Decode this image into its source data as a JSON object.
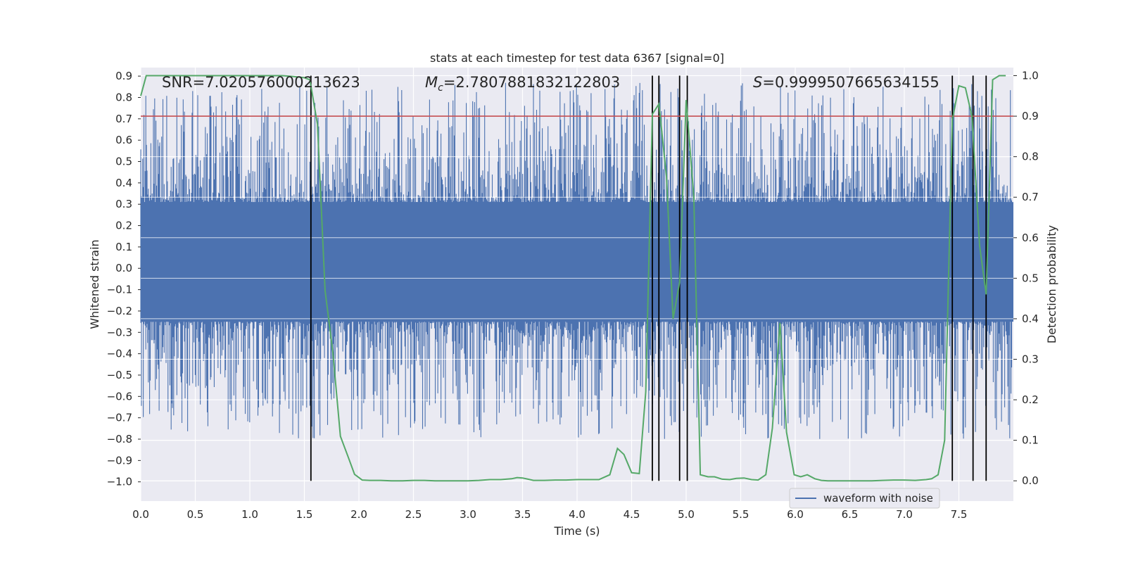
{
  "chart_data": {
    "type": "line",
    "title": "stats at each timestep for test data 6367 [signal=0]",
    "xlabel": "Time (s)",
    "ylabel_left": "Whitened strain",
    "ylabel_right": "Detection probability",
    "xlim": [
      0.0,
      8.0
    ],
    "ylim_left": [
      -1.09,
      0.94
    ],
    "ylim_right": [
      -0.05,
      1.02
    ],
    "x_ticks": [
      "0.0",
      "0.5",
      "1.0",
      "1.5",
      "2.0",
      "2.5",
      "3.0",
      "3.5",
      "4.0",
      "4.5",
      "5.0",
      "5.5",
      "6.0",
      "6.5",
      "7.0",
      "7.5"
    ],
    "y_ticks_left": [
      "0.9",
      "0.8",
      "0.7",
      "0.6",
      "0.5",
      "0.4",
      "0.3",
      "0.2",
      "0.1",
      "0.0",
      "−0.1",
      "−0.2",
      "−0.3",
      "−0.4",
      "−0.5",
      "−0.6",
      "−0.7",
      "−0.8",
      "−0.9",
      "−1.0"
    ],
    "y_ticks_right": [
      "1.0",
      "0.9",
      "0.8",
      "0.7",
      "0.6",
      "0.5",
      "0.4",
      "0.3",
      "0.2",
      "0.1",
      "0.0"
    ],
    "annotations": {
      "snr": "SNR=7.020576000213623",
      "mc_symbol": "M",
      "mc_sub": "c",
      "mc_value": "=2.7807881832122803",
      "s_symbol": "S",
      "s_value": "=0.9999507665634155"
    },
    "legend": {
      "label": "waveform with noise",
      "position": "bottom-right"
    },
    "threshold_line": {
      "prob": 0.9,
      "color": "#c44e52"
    },
    "vertical_lines_time": [
      1.56,
      4.69,
      4.75,
      4.94,
      5.01,
      7.44,
      7.63,
      7.75
    ],
    "series": [
      {
        "name": "waveform with noise",
        "color": "#4c72b0",
        "axis": "left",
        "style": "noise band",
        "core_range": [
          -0.25,
          0.31
        ],
        "envelope": [
          -0.8,
          0.87
        ]
      },
      {
        "name": "detection probability",
        "color": "#55a868",
        "axis": "right",
        "x": [
          0.0,
          0.05,
          0.1,
          0.2,
          0.3,
          0.4,
          0.5,
          0.6,
          0.7,
          0.8,
          0.9,
          1.0,
          1.1,
          1.2,
          1.3,
          1.4,
          1.5,
          1.55,
          1.62,
          1.69,
          1.76,
          1.83,
          1.9,
          1.96,
          2.03,
          2.1,
          2.2,
          2.3,
          2.4,
          2.5,
          2.6,
          2.7,
          2.8,
          2.9,
          3.0,
          3.1,
          3.2,
          3.3,
          3.4,
          3.45,
          3.5,
          3.55,
          3.6,
          3.7,
          3.8,
          3.9,
          4.0,
          4.1,
          4.2,
          4.3,
          4.37,
          4.43,
          4.5,
          4.57,
          4.63,
          4.69,
          4.75,
          4.82,
          4.88,
          4.94,
          5.0,
          5.07,
          5.13,
          5.2,
          5.26,
          5.33,
          5.4,
          5.46,
          5.53,
          5.6,
          5.66,
          5.73,
          5.79,
          5.86,
          5.92,
          5.99,
          6.05,
          6.11,
          6.18,
          6.24,
          6.3,
          6.4,
          6.5,
          6.6,
          6.7,
          6.8,
          6.9,
          7.0,
          7.1,
          7.2,
          7.25,
          7.31,
          7.37,
          7.44,
          7.5,
          7.56,
          7.62,
          7.69,
          7.75,
          7.81,
          7.87,
          7.93
        ],
        "y": [
          0.95,
          1.0,
          1.0,
          1.0,
          1.0,
          1.0,
          1.0,
          1.0,
          1.0,
          1.0,
          1.0,
          1.0,
          1.0,
          1.0,
          1.0,
          0.998,
          0.995,
          0.99,
          0.88,
          0.47,
          0.32,
          0.11,
          0.06,
          0.016,
          0.002,
          0.001,
          0.001,
          0.0,
          0.0,
          0.001,
          0.001,
          0.0,
          0.0,
          0.0,
          0.0,
          0.001,
          0.003,
          0.003,
          0.005,
          0.008,
          0.007,
          0.004,
          0.001,
          0.001,
          0.002,
          0.002,
          0.003,
          0.003,
          0.003,
          0.015,
          0.08,
          0.065,
          0.02,
          0.018,
          0.22,
          0.905,
          0.93,
          0.75,
          0.4,
          0.49,
          0.94,
          0.7,
          0.015,
          0.01,
          0.01,
          0.004,
          0.003,
          0.006,
          0.007,
          0.003,
          0.002,
          0.015,
          0.13,
          0.39,
          0.12,
          0.015,
          0.01,
          0.015,
          0.005,
          0.001,
          0.0,
          0.0,
          0.0,
          0.0,
          0.0,
          0.001,
          0.002,
          0.002,
          0.001,
          0.003,
          0.005,
          0.015,
          0.1,
          0.89,
          0.975,
          0.97,
          0.9,
          0.58,
          0.46,
          0.99,
          1.0,
          1.0
        ]
      }
    ]
  }
}
